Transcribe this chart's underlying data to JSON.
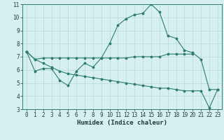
{
  "background_color": "#d6f0ef",
  "grid_color": "#b8d8d4",
  "line_color": "#2d7d6e",
  "xlabel": "Humidex (Indice chaleur)",
  "x_values": [
    0,
    1,
    2,
    3,
    4,
    5,
    6,
    7,
    8,
    9,
    10,
    11,
    12,
    13,
    14,
    15,
    16,
    17,
    18,
    19,
    20,
    21,
    22,
    23
  ],
  "line1_y": [
    7.4,
    5.9,
    6.1,
    6.1,
    5.2,
    4.8,
    5.9,
    6.5,
    6.2,
    6.9,
    8.0,
    9.4,
    9.9,
    10.2,
    10.3,
    11.0,
    10.4,
    8.6,
    8.4,
    7.5,
    7.3,
    6.8,
    4.5,
    4.5
  ],
  "line2_y": [
    7.4,
    6.8,
    6.9,
    6.9,
    6.9,
    6.9,
    6.9,
    6.9,
    6.9,
    6.9,
    6.9,
    6.9,
    6.9,
    7.0,
    7.0,
    7.0,
    7.0,
    7.2,
    7.2,
    7.2,
    7.2,
    null,
    null,
    null
  ],
  "line3_y": [
    7.4,
    6.8,
    6.5,
    6.2,
    5.9,
    5.7,
    5.6,
    5.5,
    5.4,
    5.3,
    5.2,
    5.1,
    5.0,
    4.9,
    4.8,
    4.7,
    4.6,
    4.6,
    4.5,
    4.4,
    4.4,
    4.4,
    3.1,
    4.5
  ],
  "ylim": [
    3,
    11
  ],
  "yticks": [
    3,
    4,
    5,
    6,
    7,
    8,
    9,
    10,
    11
  ],
  "xticks": [
    0,
    1,
    2,
    3,
    4,
    5,
    6,
    7,
    8,
    9,
    10,
    11,
    12,
    13,
    14,
    15,
    16,
    17,
    18,
    19,
    20,
    21,
    22,
    23
  ],
  "tick_fontsize": 5.5,
  "xlabel_fontsize": 6.5,
  "linewidth": 0.8,
  "markersize": 2.5
}
